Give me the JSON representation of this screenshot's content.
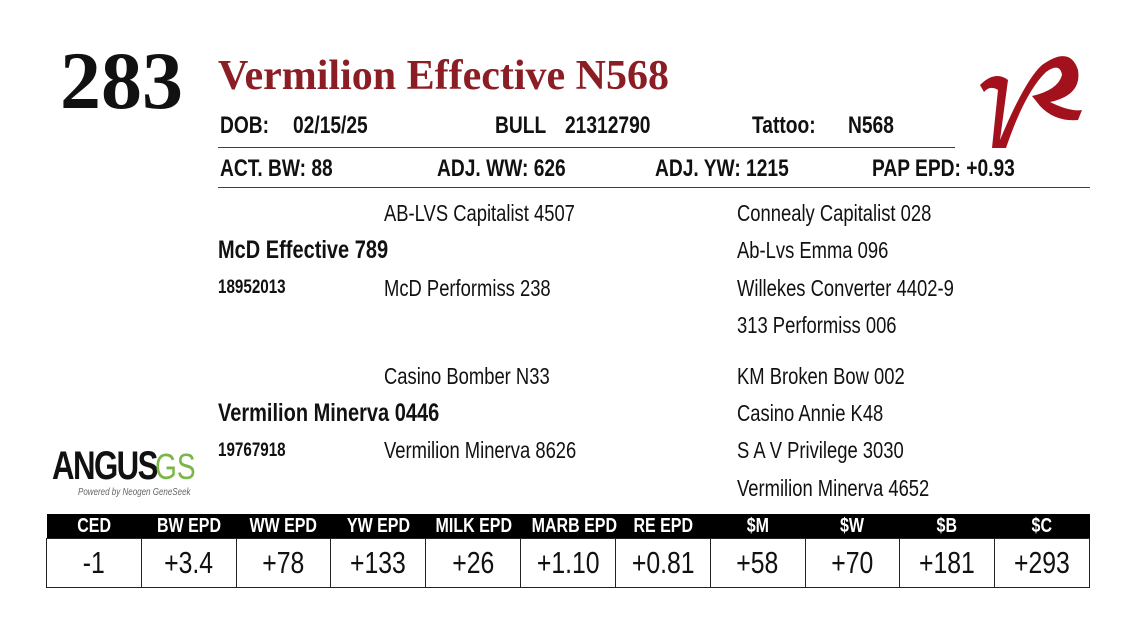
{
  "lot": "283",
  "name": "Vermilion Effective N568",
  "info": {
    "dob_label": "DOB:",
    "dob": "02/15/25",
    "sex": "BULL",
    "registration": "21312790",
    "tattoo_label": "Tattoo:",
    "tattoo": "N568"
  },
  "performance": [
    "ACT. BW: 88",
    "ADJ. WW: 626",
    "ADJ. YW: 1215",
    "PAP EPD: +0.93"
  ],
  "pedigree": {
    "sire": {
      "name": "McD Effective 789",
      "registration": "18952013",
      "sire": "AB-LVS Capitalist 4507",
      "dam": "McD Performiss 238",
      "sire_sire": "Connealy Capitalist 028",
      "sire_dam": "Ab-Lvs Emma 096",
      "dam_sire": "Willekes Converter 4402-9",
      "dam_dam": "313 Performiss 006"
    },
    "dam": {
      "name": "Vermilion Minerva 0446",
      "registration": "19767918",
      "sire": "Casino Bomber N33",
      "dam": "Vermilion Minerva 8626",
      "sire_sire": "KM Broken Bow 002",
      "sire_dam": "Casino Annie K48",
      "dam_sire": "S A V Privilege 3030",
      "dam_dam": "Vermilion Minerva 4652"
    }
  },
  "logo": {
    "main": "ANGUS",
    "accent": "GS",
    "tagline": "Powered by Neogen GeneSeek"
  },
  "epd_table": {
    "headers": [
      "CED",
      "BW EPD",
      "WW EPD",
      "YW EPD",
      "MILK EPD",
      "MARB EPD",
      "RE EPD",
      "$M",
      "$W",
      "$B",
      "$C"
    ],
    "values": [
      "-1",
      "+3.4",
      "+78",
      "+133",
      "+26",
      "+1.10",
      "+0.81",
      "+58",
      "+70",
      "+181",
      "+293"
    ]
  }
}
